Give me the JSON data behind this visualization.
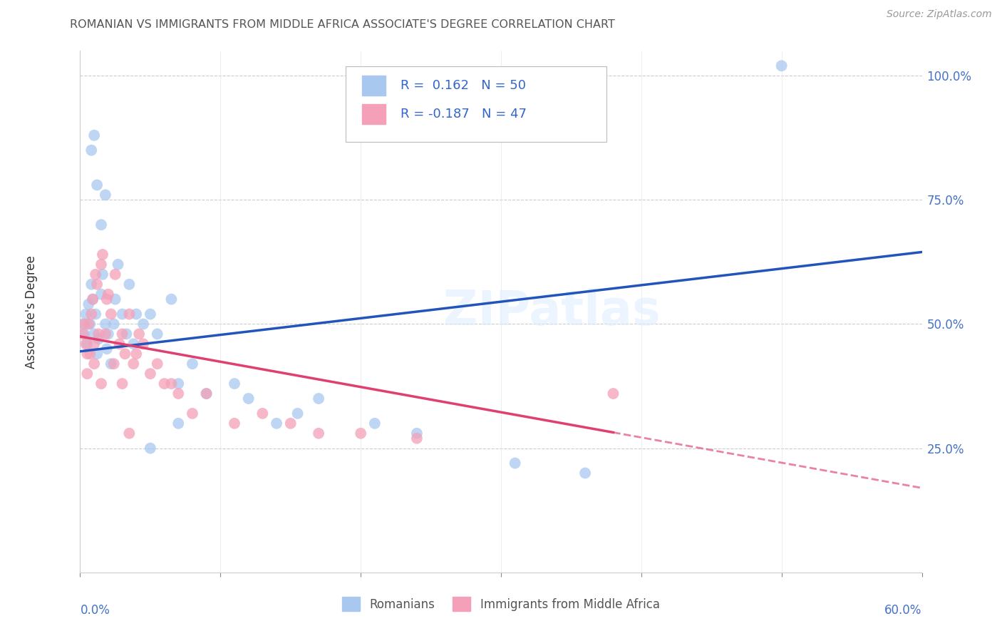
{
  "title": "ROMANIAN VS IMMIGRANTS FROM MIDDLE AFRICA ASSOCIATE'S DEGREE CORRELATION CHART",
  "source": "Source: ZipAtlas.com",
  "ylabel": "Associate's Degree",
  "ytick_labels": [
    "",
    "25.0%",
    "50.0%",
    "75.0%",
    "100.0%"
  ],
  "ytick_values": [
    0.0,
    0.25,
    0.5,
    0.75,
    1.0
  ],
  "xlim": [
    0.0,
    0.6
  ],
  "ylim": [
    0.0,
    1.05
  ],
  "r_romanian": 0.162,
  "n_romanian": 50,
  "r_immigrant": -0.187,
  "n_immigrant": 47,
  "color_romanian": "#a8c8f0",
  "color_immigrant": "#f4a0b8",
  "color_line_romanian": "#2255bb",
  "color_line_immigrant": "#e04070",
  "watermark": "ZIPatlas",
  "legend_label_1": "Romanians",
  "legend_label_2": "Immigrants from Middle Africa",
  "line_rom_x0": 0.0,
  "line_rom_y0": 0.445,
  "line_rom_x1": 0.6,
  "line_rom_y1": 0.645,
  "line_imm_x0": 0.0,
  "line_imm_y0": 0.475,
  "line_imm_x1": 0.6,
  "line_imm_y1": 0.17,
  "line_imm_solid_end": 0.38,
  "romanian_x": [
    0.002,
    0.003,
    0.004,
    0.005,
    0.006,
    0.007,
    0.008,
    0.009,
    0.01,
    0.011,
    0.012,
    0.013,
    0.015,
    0.016,
    0.018,
    0.019,
    0.02,
    0.022,
    0.024,
    0.025,
    0.027,
    0.03,
    0.033,
    0.035,
    0.038,
    0.04,
    0.045,
    0.05,
    0.055,
    0.065,
    0.07,
    0.08,
    0.09,
    0.11,
    0.12,
    0.14,
    0.155,
    0.17,
    0.21,
    0.24,
    0.01,
    0.008,
    0.012,
    0.015,
    0.018,
    0.31,
    0.36,
    0.5,
    0.05,
    0.07
  ],
  "romanian_y": [
    0.5,
    0.48,
    0.52,
    0.46,
    0.54,
    0.5,
    0.58,
    0.55,
    0.48,
    0.52,
    0.44,
    0.47,
    0.56,
    0.6,
    0.5,
    0.45,
    0.48,
    0.42,
    0.5,
    0.55,
    0.62,
    0.52,
    0.48,
    0.58,
    0.46,
    0.52,
    0.5,
    0.52,
    0.48,
    0.55,
    0.38,
    0.42,
    0.36,
    0.38,
    0.35,
    0.3,
    0.32,
    0.35,
    0.3,
    0.28,
    0.88,
    0.85,
    0.78,
    0.7,
    0.76,
    0.22,
    0.2,
    1.02,
    0.25,
    0.3
  ],
  "immigrant_x": [
    0.002,
    0.003,
    0.004,
    0.005,
    0.006,
    0.008,
    0.009,
    0.01,
    0.011,
    0.012,
    0.013,
    0.015,
    0.016,
    0.018,
    0.019,
    0.02,
    0.022,
    0.024,
    0.025,
    0.028,
    0.03,
    0.032,
    0.035,
    0.038,
    0.04,
    0.042,
    0.045,
    0.05,
    0.055,
    0.06,
    0.065,
    0.07,
    0.08,
    0.09,
    0.11,
    0.13,
    0.15,
    0.17,
    0.2,
    0.24,
    0.005,
    0.007,
    0.01,
    0.015,
    0.38,
    0.03,
    0.035
  ],
  "immigrant_y": [
    0.48,
    0.5,
    0.46,
    0.44,
    0.5,
    0.52,
    0.55,
    0.46,
    0.6,
    0.58,
    0.48,
    0.62,
    0.64,
    0.48,
    0.55,
    0.56,
    0.52,
    0.42,
    0.6,
    0.46,
    0.48,
    0.44,
    0.52,
    0.42,
    0.44,
    0.48,
    0.46,
    0.4,
    0.42,
    0.38,
    0.38,
    0.36,
    0.32,
    0.36,
    0.3,
    0.32,
    0.3,
    0.28,
    0.28,
    0.27,
    0.4,
    0.44,
    0.42,
    0.38,
    0.36,
    0.38,
    0.28
  ]
}
